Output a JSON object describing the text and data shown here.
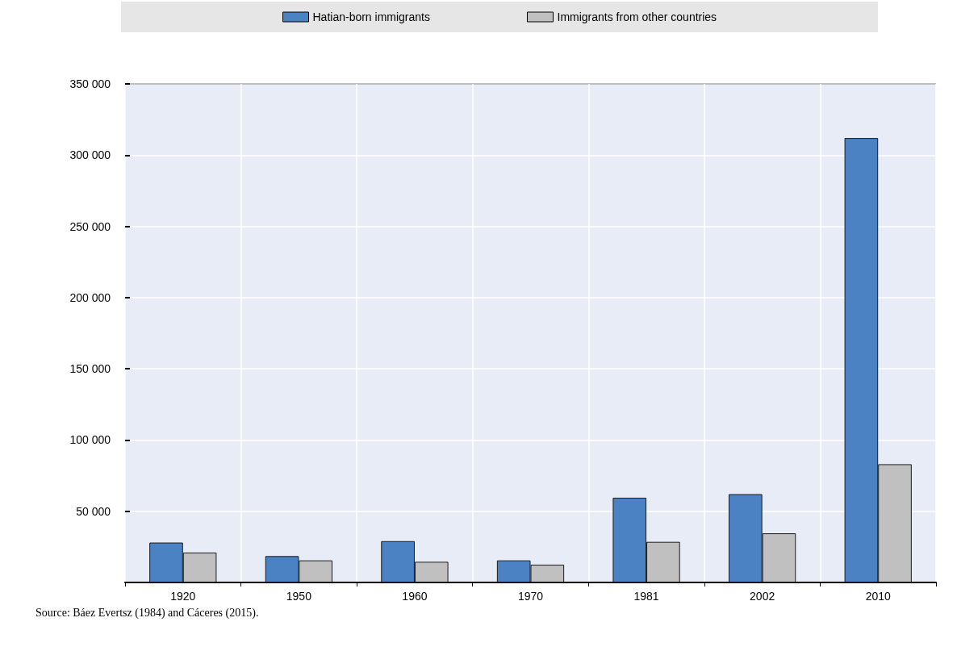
{
  "chart_data": {
    "type": "bar",
    "categories": [
      "1920",
      "1950",
      "1960",
      "1970",
      "1981",
      "2002",
      "2010"
    ],
    "series": [
      {
        "name": "Hatian-born immigrants",
        "color": "#4a82c3",
        "values": [
          28000,
          18500,
          29000,
          15500,
          59500,
          62000,
          312000
        ]
      },
      {
        "name": "Immigrants from other countries",
        "color": "#c0c0c0",
        "values": [
          21000,
          15500,
          14500,
          12500,
          28500,
          34500,
          83000
        ]
      }
    ],
    "ylim": [
      0,
      350000
    ],
    "yticks": [
      {
        "value": 0,
        "label": null
      },
      {
        "value": 50000,
        "label": "50 000"
      },
      {
        "value": 100000,
        "label": "100 000"
      },
      {
        "value": 150000,
        "label": "150 000"
      },
      {
        "value": 200000,
        "label": "200 000"
      },
      {
        "value": 250000,
        "label": "250 000"
      },
      {
        "value": 300000,
        "label": "300 000"
      },
      {
        "value": 350000,
        "label": "350 000"
      }
    ],
    "grid": true,
    "legend": "top",
    "annotations": [
      "Source: Báez Evertsz (1984) and Cáceres (2015)."
    ]
  }
}
